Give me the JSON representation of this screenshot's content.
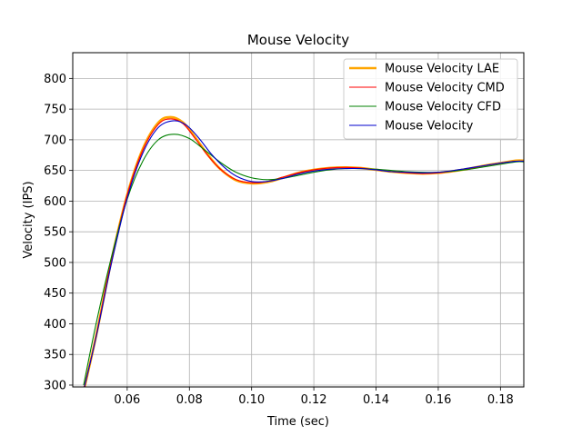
{
  "chart_data": {
    "type": "line",
    "title": "Mouse Velocity",
    "xlabel": "Time (sec)",
    "ylabel": "Velocity (IPS)",
    "xlim": [
      0.0425,
      0.1875
    ],
    "ylim": [
      297,
      842
    ],
    "xticks": [
      0.06,
      0.08,
      0.1,
      0.12,
      0.14,
      0.16,
      0.18
    ],
    "xtick_labels": [
      "0.06",
      "0.08",
      "0.10",
      "0.12",
      "0.14",
      "0.16",
      "0.18"
    ],
    "yticks": [
      300,
      350,
      400,
      450,
      500,
      550,
      600,
      650,
      700,
      750,
      800
    ],
    "ytick_labels": [
      "300",
      "350",
      "400",
      "450",
      "500",
      "550",
      "600",
      "650",
      "700",
      "750",
      "800"
    ],
    "grid": true,
    "legend_position": "top-right",
    "series": [
      {
        "name": "Mouse Velocity LAE",
        "color": "#ffa500",
        "x": [
          0.046,
          0.05,
          0.055,
          0.06,
          0.065,
          0.07,
          0.074,
          0.078,
          0.082,
          0.086,
          0.09,
          0.095,
          0.1,
          0.105,
          0.11,
          0.115,
          0.12,
          0.125,
          0.13,
          0.135,
          0.14,
          0.145,
          0.15,
          0.155,
          0.16,
          0.165,
          0.17,
          0.175,
          0.18,
          0.185,
          0.1875
        ],
        "y": [
          290,
          380,
          505,
          610,
          685,
          728,
          737,
          728,
          703,
          675,
          652,
          634,
          629,
          631,
          638,
          646,
          651,
          654,
          655,
          654,
          651,
          648,
          646,
          645,
          646,
          649,
          653,
          658,
          662,
          666,
          666
        ]
      },
      {
        "name": "Mouse Velocity CMD",
        "color": "#ff0000",
        "x": [
          0.046,
          0.05,
          0.055,
          0.06,
          0.065,
          0.07,
          0.074,
          0.078,
          0.082,
          0.086,
          0.09,
          0.095,
          0.1,
          0.105,
          0.11,
          0.115,
          0.12,
          0.125,
          0.13,
          0.135,
          0.14,
          0.145,
          0.15,
          0.155,
          0.16,
          0.165,
          0.17,
          0.175,
          0.18,
          0.185,
          0.1875
        ],
        "y": [
          290,
          380,
          505,
          610,
          683,
          725,
          734,
          726,
          701,
          674,
          652,
          635,
          630,
          632,
          639,
          646,
          651,
          654,
          655,
          654,
          651,
          648,
          646,
          645,
          646,
          649,
          653,
          658,
          662,
          665,
          665
        ]
      },
      {
        "name": "Mouse Velocity CFD",
        "color": "#008000",
        "x": [
          0.046,
          0.05,
          0.055,
          0.06,
          0.065,
          0.07,
          0.075,
          0.08,
          0.085,
          0.09,
          0.095,
          0.1,
          0.105,
          0.11,
          0.115,
          0.12,
          0.125,
          0.13,
          0.135,
          0.14,
          0.145,
          0.15,
          0.155,
          0.16,
          0.165,
          0.17,
          0.175,
          0.18,
          0.185,
          0.1875
        ],
        "y": [
          300,
          400,
          510,
          603,
          665,
          700,
          709,
          702,
          683,
          663,
          647,
          638,
          635,
          637,
          642,
          647,
          651,
          653,
          653,
          652,
          650,
          648,
          647,
          647,
          649,
          652,
          656,
          660,
          664,
          664
        ]
      },
      {
        "name": "Mouse Velocity",
        "color": "#0000cc",
        "x": [
          0.046,
          0.05,
          0.055,
          0.06,
          0.065,
          0.07,
          0.075,
          0.079,
          0.083,
          0.087,
          0.091,
          0.095,
          0.1,
          0.105,
          0.11,
          0.115,
          0.12,
          0.125,
          0.13,
          0.135,
          0.14,
          0.145,
          0.15,
          0.155,
          0.16,
          0.165,
          0.17,
          0.175,
          0.18,
          0.185,
          0.1875
        ],
        "y": [
          292,
          378,
          500,
          605,
          678,
          720,
          731,
          724,
          703,
          677,
          656,
          641,
          632,
          632,
          637,
          644,
          649,
          652,
          653,
          653,
          651,
          648,
          647,
          646,
          647,
          650,
          654,
          658,
          662,
          665,
          665
        ]
      }
    ]
  }
}
